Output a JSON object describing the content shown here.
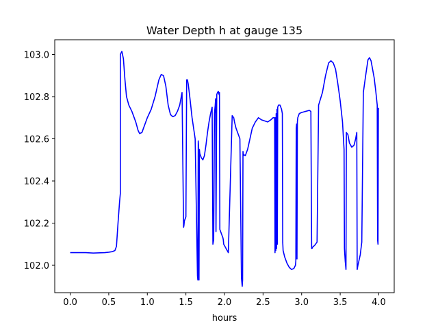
{
  "chart_data": {
    "type": "line",
    "title": "Water Depth h at gauge 135",
    "xlabel": "hours",
    "ylabel": "",
    "xlim": [
      -0.2,
      4.2
    ],
    "ylim": [
      101.87,
      103.07
    ],
    "xticks": [
      0.0,
      0.5,
      1.0,
      1.5,
      2.0,
      2.5,
      3.0,
      3.5,
      4.0
    ],
    "xtick_labels": [
      "0.0",
      "0.5",
      "1.0",
      "1.5",
      "2.0",
      "2.5",
      "3.0",
      "3.5",
      "4.0"
    ],
    "yticks": [
      102.0,
      102.2,
      102.4,
      102.6,
      102.8,
      103.0
    ],
    "ytick_labels": [
      "102.0",
      "102.2",
      "102.4",
      "102.6",
      "102.8",
      "103.0"
    ],
    "grid": false,
    "series": [
      {
        "color": "#0000ff",
        "x": [
          0.0,
          0.2,
          0.3,
          0.45,
          0.5,
          0.55,
          0.58,
          0.6,
          0.62,
          0.64,
          0.65,
          0.65,
          0.67,
          0.69,
          0.71,
          0.73,
          0.76,
          0.8,
          0.85,
          0.88,
          0.9,
          0.93,
          0.96,
          1.0,
          1.05,
          1.1,
          1.15,
          1.18,
          1.21,
          1.24,
          1.27,
          1.3,
          1.33,
          1.36,
          1.39,
          1.42,
          1.45,
          1.47,
          1.475,
          1.48,
          1.5,
          1.51,
          1.52,
          1.53,
          1.55,
          1.58,
          1.62,
          1.65,
          1.655,
          1.66,
          1.665,
          1.67,
          1.675,
          1.68,
          1.7,
          1.72,
          1.74,
          1.76,
          1.78,
          1.8,
          1.82,
          1.84,
          1.85,
          1.86,
          1.87,
          1.88,
          1.885,
          1.89,
          1.9,
          1.91,
          1.92,
          1.93,
          1.935,
          1.94,
          1.95,
          1.96,
          1.97,
          1.98,
          1.985,
          1.99,
          2.05,
          2.1,
          2.12,
          2.13,
          2.15,
          2.2,
          2.22,
          2.23,
          2.235,
          2.24,
          2.245,
          2.25,
          2.27,
          2.3,
          2.33,
          2.36,
          2.4,
          2.44,
          2.48,
          2.52,
          2.56,
          2.6,
          2.63,
          2.65,
          2.655,
          2.66,
          2.665,
          2.67,
          2.675,
          2.68,
          2.685,
          2.69,
          2.7,
          2.72,
          2.74,
          2.75,
          2.755,
          2.76,
          2.78,
          2.81,
          2.84,
          2.87,
          2.9,
          2.92,
          2.925,
          2.93,
          2.935,
          2.94,
          2.945,
          2.95,
          2.97,
          3.0,
          3.05,
          3.1,
          3.12,
          3.13,
          3.135,
          3.14,
          3.17,
          3.2,
          3.22,
          3.27,
          3.31,
          3.35,
          3.38,
          3.41,
          3.44,
          3.47,
          3.5,
          3.53,
          3.55,
          3.555,
          3.56,
          3.565,
          3.57,
          3.575,
          3.58,
          3.6,
          3.62,
          3.65,
          3.68,
          3.7,
          3.71,
          3.715,
          3.72,
          3.73,
          3.76,
          3.78,
          3.8,
          3.83,
          3.86,
          3.88,
          3.9,
          3.92,
          3.94,
          3.96,
          3.98,
          3.985,
          3.99,
          3.995,
          4.0
        ],
        "y": [
          102.06,
          102.06,
          102.058,
          102.06,
          102.062,
          102.065,
          102.07,
          102.09,
          102.2,
          102.3,
          102.34,
          103.0,
          103.015,
          102.98,
          102.88,
          102.8,
          102.76,
          102.73,
          102.68,
          102.64,
          102.625,
          102.63,
          102.66,
          102.7,
          102.74,
          102.8,
          102.88,
          102.905,
          102.9,
          102.85,
          102.76,
          102.715,
          102.705,
          102.71,
          102.73,
          102.76,
          102.82,
          102.18,
          102.19,
          102.21,
          102.23,
          102.88,
          102.88,
          102.86,
          102.8,
          102.7,
          102.6,
          101.95,
          101.93,
          102.59,
          102.56,
          101.93,
          102.55,
          102.53,
          102.51,
          102.5,
          102.52,
          102.57,
          102.63,
          102.68,
          102.72,
          102.75,
          102.1,
          102.12,
          102.72,
          102.76,
          102.79,
          102.16,
          102.81,
          102.82,
          102.825,
          102.81,
          102.82,
          102.17,
          102.16,
          102.15,
          102.14,
          102.13,
          102.12,
          102.1,
          102.06,
          102.71,
          102.7,
          102.68,
          102.65,
          102.6,
          101.94,
          101.9,
          101.93,
          102.54,
          102.52,
          102.525,
          102.52,
          102.55,
          102.6,
          102.65,
          102.68,
          102.7,
          102.69,
          102.685,
          102.68,
          102.69,
          102.7,
          102.7,
          102.06,
          102.7,
          102.07,
          102.72,
          102.08,
          102.74,
          102.1,
          102.75,
          102.76,
          102.76,
          102.74,
          102.72,
          102.11,
          102.07,
          102.04,
          102.01,
          101.99,
          101.98,
          101.985,
          102.0,
          102.02,
          102.65,
          102.67,
          102.03,
          102.68,
          102.7,
          102.72,
          102.725,
          102.73,
          102.735,
          102.73,
          102.08,
          102.08,
          102.085,
          102.095,
          102.11,
          102.76,
          102.82,
          102.9,
          102.96,
          102.97,
          102.96,
          102.93,
          102.86,
          102.78,
          102.68,
          102.55,
          102.08,
          102.05,
          102.02,
          102.0,
          101.98,
          102.63,
          102.62,
          102.58,
          102.56,
          102.57,
          102.6,
          102.62,
          102.63,
          101.98,
          102.0,
          102.05,
          102.11,
          102.82,
          102.9,
          102.975,
          102.985,
          102.97,
          102.93,
          102.89,
          102.83,
          102.76,
          102.12,
          102.1,
          102.745,
          102.74
        ]
      }
    ]
  }
}
